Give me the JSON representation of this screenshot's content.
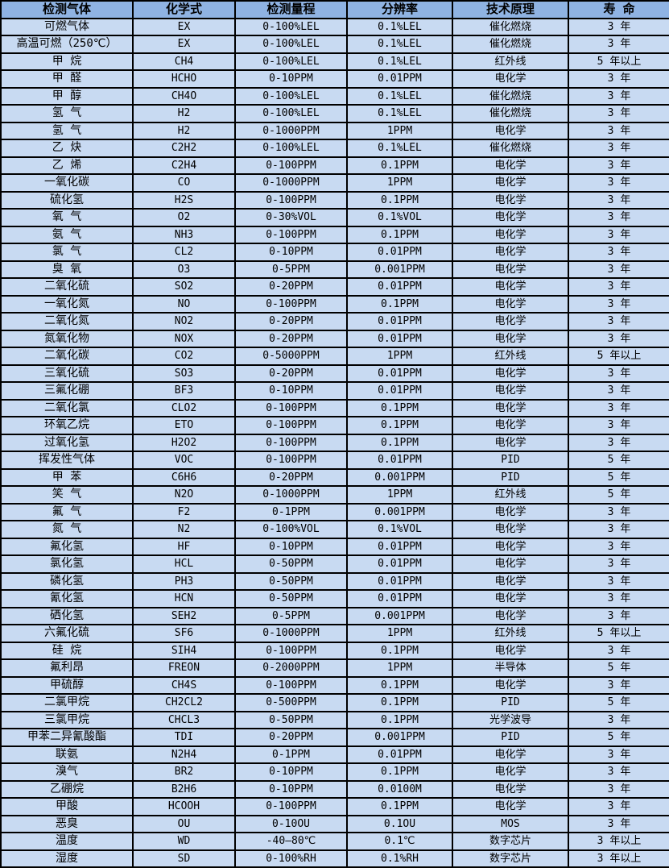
{
  "colors": {
    "header_bg": "#8fb3e3",
    "row_bg": "#c8daf2",
    "border": "#000000",
    "text": "#000000"
  },
  "table": {
    "column_keys": [
      "gas",
      "formula",
      "range",
      "resolution",
      "principle",
      "lifespan"
    ],
    "headers": [
      "检测气体",
      "化学式",
      "检测量程",
      "分辨率",
      "技术原理",
      "寿 命"
    ],
    "rows": [
      [
        "可燃气体",
        "EX",
        "0-100%LEL",
        "0.1%LEL",
        "催化燃烧",
        "3 年"
      ],
      [
        "高温可燃（250℃）",
        "EX",
        "0-100%LEL",
        "0.1%LEL",
        "催化燃烧",
        "3 年"
      ],
      [
        "甲 烷",
        "CH4",
        "0-100%LEL",
        "0.1%LEL",
        "红外线",
        "5 年以上"
      ],
      [
        "甲 醛",
        "HCHO",
        "0-10PPM",
        "0.01PPM",
        "电化学",
        "3 年"
      ],
      [
        "甲 醇",
        "CH4O",
        "0-100%LEL",
        "0.1%LEL",
        "催化燃烧",
        "3 年"
      ],
      [
        "氢 气",
        "H2",
        "0-100%LEL",
        "0.1%LEL",
        "催化燃烧",
        "3 年"
      ],
      [
        "氢 气",
        "H2",
        "0-1000PPM",
        "1PPM",
        "电化学",
        "3 年"
      ],
      [
        "乙 炔",
        "C2H2",
        "0-100%LEL",
        "0.1%LEL",
        "催化燃烧",
        "3 年"
      ],
      [
        "乙 烯",
        "C2H4",
        "0-100PPM",
        "0.1PPM",
        "电化学",
        "3 年"
      ],
      [
        "一氧化碳",
        "CO",
        "0-1000PPM",
        "1PPM",
        "电化学",
        "3 年"
      ],
      [
        "硫化氢",
        "H2S",
        "0-100PPM",
        "0.1PPM",
        "电化学",
        "3 年"
      ],
      [
        "氧 气",
        "O2",
        "0-30%VOL",
        "0.1%VOL",
        "电化学",
        "3 年"
      ],
      [
        "氨 气",
        "NH3",
        "0-100PPM",
        "0.1PPM",
        "电化学",
        "3 年"
      ],
      [
        "氯 气",
        "CL2",
        "0-10PPM",
        "0.01PPM",
        "电化学",
        "3 年"
      ],
      [
        "臭 氧",
        "O3",
        "0-5PPM",
        "0.001PPM",
        "电化学",
        "3 年"
      ],
      [
        "二氧化硫",
        "SO2",
        "0-20PPM",
        "0.01PPM",
        "电化学",
        "3 年"
      ],
      [
        "一氧化氮",
        "NO",
        "0-100PPM",
        "0.1PPM",
        "电化学",
        "3 年"
      ],
      [
        "二氧化氮",
        "NO2",
        "0-20PPM",
        "0.01PPM",
        "电化学",
        "3 年"
      ],
      [
        "氮氧化物",
        "NOX",
        "0-20PPM",
        "0.01PPM",
        "电化学",
        "3 年"
      ],
      [
        "二氧化碳",
        "CO2",
        "0-5000PPM",
        "1PPM",
        "红外线",
        "5 年以上"
      ],
      [
        "三氧化硫",
        "SO3",
        "0-20PPM",
        "0.01PPM",
        "电化学",
        "3 年"
      ],
      [
        "三氟化硼",
        "BF3",
        "0-10PPM",
        "0.01PPM",
        "电化学",
        "3 年"
      ],
      [
        "二氧化氯",
        "CLO2",
        "0-100PPM",
        "0.1PPM",
        "电化学",
        "3 年"
      ],
      [
        "环氧乙烷",
        "ETO",
        "0-100PPM",
        "0.1PPM",
        "电化学",
        "3 年"
      ],
      [
        "过氧化氢",
        "H2O2",
        "0-100PPM",
        "0.1PPM",
        "电化学",
        "3 年"
      ],
      [
        "挥发性气体",
        "VOC",
        "0-100PPM",
        "0.01PPM",
        "PID",
        "5 年"
      ],
      [
        "甲 苯",
        "C6H6",
        "0-20PPM",
        "0.001PPM",
        "PID",
        "5 年"
      ],
      [
        "笑 气",
        "N2O",
        "0-1000PPM",
        "1PPM",
        "红外线",
        "5 年"
      ],
      [
        "氟 气",
        "F2",
        "0-1PPM",
        "0.001PPM",
        "电化学",
        "3 年"
      ],
      [
        "氮 气",
        "N2",
        "0-100%VOL",
        "0.1%VOL",
        "电化学",
        "3 年"
      ],
      [
        "氟化氢",
        "HF",
        "0-10PPM",
        "0.01PPM",
        "电化学",
        "3 年"
      ],
      [
        "氯化氢",
        "HCL",
        "0-50PPM",
        "0.01PPM",
        "电化学",
        "3 年"
      ],
      [
        "磷化氢",
        "PH3",
        "0-50PPM",
        "0.01PPM",
        "电化学",
        "3 年"
      ],
      [
        "氰化氢",
        "HCN",
        "0-50PPM",
        "0.01PPM",
        "电化学",
        "3 年"
      ],
      [
        "硒化氢",
        "SEH2",
        "0-5PPM",
        "0.001PPM",
        "电化学",
        "3 年"
      ],
      [
        "六氟化硫",
        "SF6",
        "0-1000PPM",
        "1PPM",
        "红外线",
        "5 年以上"
      ],
      [
        "硅 烷",
        "SIH4",
        "0-100PPM",
        "0.1PPM",
        "电化学",
        "3 年"
      ],
      [
        "氟利昂",
        "FREON",
        "0-2000PPM",
        "1PPM",
        "半导体",
        "5 年"
      ],
      [
        "甲硫醇",
        "CH4S",
        "0-100PPM",
        "0.1PPM",
        "电化学",
        "3 年"
      ],
      [
        "二氯甲烷",
        "CH2CL2",
        "0-500PPM",
        "0.1PPM",
        "PID",
        "5 年"
      ],
      [
        "三氯甲烷",
        "CHCL3",
        "0-50PPM",
        "0.1PPM",
        "光学波导",
        "3 年"
      ],
      [
        "甲苯二异氰酸酯",
        "TDI",
        "0-20PPM",
        "0.001PPM",
        "PID",
        "5 年"
      ],
      [
        "联氨",
        "N2H4",
        "0-1PPM",
        "0.01PPM",
        "电化学",
        "3 年"
      ],
      [
        "溴气",
        "BR2",
        "0-10PPM",
        "0.1PPM",
        "电化学",
        "3 年"
      ],
      [
        "乙硼烷",
        "B2H6",
        "0-10PPM",
        "0.0100M",
        "电化学",
        "3 年"
      ],
      [
        "甲酸",
        "HCOOH",
        "0-100PPM",
        "0.1PPM",
        "电化学",
        "3 年"
      ],
      [
        "恶臭",
        "OU",
        "0-10OU",
        "0.1OU",
        "MOS",
        "3 年"
      ],
      [
        "温度",
        "WD",
        "-40—80℃",
        "0.1℃",
        "数字芯片",
        "3 年以上"
      ],
      [
        "湿度",
        "SD",
        "0-100%RH",
        "0.1%RH",
        "数字芯片",
        "3 年以上"
      ]
    ]
  }
}
